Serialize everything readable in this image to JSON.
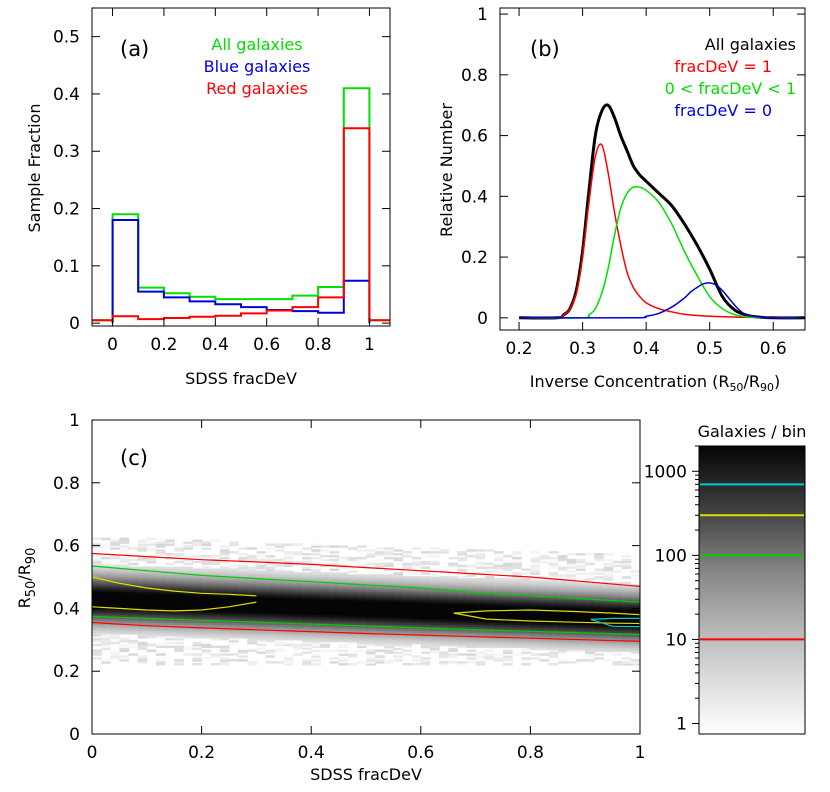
{
  "chart_data": [
    {
      "type": "line",
      "panel_label": "(a)",
      "xlabel": "SDSS fracDeV",
      "ylabel": "Sample Fraction",
      "xlim": [
        -0.08,
        1.08
      ],
      "ylim": [
        -0.005,
        0.55
      ],
      "xticks": [
        "0",
        "0.2",
        "0.4",
        "0.6",
        "0.8",
        "1"
      ],
      "xtick_values": [
        0,
        0.2,
        0.4,
        0.6,
        0.8,
        1
      ],
      "yticks": [
        "0",
        "0.1",
        "0.2",
        "0.3",
        "0.4",
        "0.5"
      ],
      "ytick_values": [
        0,
        0.1,
        0.2,
        0.3,
        0.4,
        0.5
      ],
      "legend_position": "top",
      "series": [
        {
          "name": "All galaxies",
          "color": "#00e000",
          "step": true,
          "x": [
            -0.08,
            0.0,
            0.0,
            0.1,
            0.1,
            0.2,
            0.2,
            0.3,
            0.3,
            0.4,
            0.4,
            0.5,
            0.5,
            0.6,
            0.6,
            0.7,
            0.7,
            0.8,
            0.8,
            0.9,
            0.9,
            1.0,
            1.0,
            1.08
          ],
          "y": [
            0.005,
            0.005,
            0.19,
            0.19,
            0.062,
            0.062,
            0.052,
            0.052,
            0.046,
            0.046,
            0.042,
            0.042,
            0.042,
            0.042,
            0.042,
            0.042,
            0.048,
            0.048,
            0.063,
            0.063,
            0.41,
            0.41,
            0.005,
            0.005
          ]
        },
        {
          "name": "Blue galaxies",
          "color": "#0000dd",
          "step": true,
          "x": [
            0.0,
            0.0,
            0.1,
            0.1,
            0.2,
            0.2,
            0.3,
            0.3,
            0.4,
            0.4,
            0.5,
            0.5,
            0.6,
            0.6,
            0.7,
            0.7,
            0.8,
            0.8,
            0.9,
            0.9,
            1.0,
            1.0
          ],
          "y": [
            0.0,
            0.18,
            0.18,
            0.055,
            0.055,
            0.045,
            0.045,
            0.038,
            0.038,
            0.033,
            0.033,
            0.028,
            0.028,
            0.023,
            0.023,
            0.021,
            0.021,
            0.018,
            0.018,
            0.074,
            0.074,
            0.0
          ]
        },
        {
          "name": "Red galaxies",
          "color": "#ff0000",
          "step": true,
          "x": [
            -0.08,
            0.0,
            0.0,
            0.1,
            0.1,
            0.2,
            0.2,
            0.3,
            0.3,
            0.4,
            0.4,
            0.5,
            0.5,
            0.6,
            0.6,
            0.7,
            0.7,
            0.8,
            0.8,
            0.9,
            0.9,
            1.0,
            1.0,
            1.08
          ],
          "y": [
            0.005,
            0.005,
            0.012,
            0.012,
            0.007,
            0.007,
            0.009,
            0.009,
            0.011,
            0.011,
            0.013,
            0.013,
            0.017,
            0.017,
            0.022,
            0.022,
            0.028,
            0.028,
            0.045,
            0.045,
            0.34,
            0.34,
            0.005,
            0.005
          ]
        }
      ]
    },
    {
      "type": "line",
      "panel_label": "(b)",
      "xlabel": "Inverse Concentration (R",
      "xlabel_sub1": "50",
      "xlabel_mid": "/R",
      "xlabel_sub2": "90",
      "xlabel_end": ")",
      "ylabel": "Relative Number",
      "xlim": [
        0.17,
        0.65
      ],
      "ylim": [
        -0.04,
        1.02
      ],
      "xticks": [
        "0.2",
        "0.3",
        "0.4",
        "0.5",
        "0.6"
      ],
      "xtick_values": [
        0.2,
        0.3,
        0.4,
        0.5,
        0.6
      ],
      "yticks": [
        "0",
        "0.2",
        "0.4",
        "0.6",
        "0.8",
        "1"
      ],
      "ytick_values": [
        0,
        0.2,
        0.4,
        0.6,
        0.8,
        1
      ],
      "legend_position": "top-right",
      "series": [
        {
          "name": "All galaxies",
          "color": "#000000",
          "width": 3,
          "x": [
            0.2,
            0.26,
            0.27,
            0.28,
            0.29,
            0.3,
            0.31,
            0.32,
            0.33,
            0.34,
            0.35,
            0.36,
            0.37,
            0.38,
            0.39,
            0.4,
            0.42,
            0.44,
            0.46,
            0.48,
            0.5,
            0.52,
            0.54,
            0.56,
            0.58,
            0.6,
            0.65
          ],
          "y": [
            0.0,
            0.0,
            0.01,
            0.03,
            0.09,
            0.22,
            0.42,
            0.6,
            0.68,
            0.7,
            0.66,
            0.6,
            0.55,
            0.5,
            0.47,
            0.45,
            0.41,
            0.37,
            0.31,
            0.24,
            0.16,
            0.07,
            0.025,
            0.008,
            0.002,
            0.0,
            0.0
          ]
        },
        {
          "name": "fracDeV = 1",
          "color": "#ff0000",
          "width": 1.5,
          "x": [
            0.2,
            0.26,
            0.27,
            0.28,
            0.29,
            0.3,
            0.31,
            0.32,
            0.33,
            0.34,
            0.35,
            0.36,
            0.37,
            0.38,
            0.39,
            0.4,
            0.42,
            0.44,
            0.46,
            0.5,
            0.55,
            0.65
          ],
          "y": [
            0.0,
            0.0,
            0.01,
            0.03,
            0.08,
            0.2,
            0.38,
            0.53,
            0.57,
            0.48,
            0.35,
            0.24,
            0.15,
            0.1,
            0.07,
            0.05,
            0.03,
            0.02,
            0.012,
            0.005,
            0.002,
            0.0
          ]
        },
        {
          "name": "0 < fracDeV < 1",
          "color": "#00e000",
          "width": 1.5,
          "x": [
            0.2,
            0.3,
            0.31,
            0.32,
            0.33,
            0.34,
            0.35,
            0.36,
            0.37,
            0.38,
            0.39,
            0.4,
            0.42,
            0.44,
            0.46,
            0.48,
            0.5,
            0.52,
            0.54,
            0.56,
            0.6,
            0.65
          ],
          "y": [
            0.0,
            0.0,
            0.01,
            0.03,
            0.08,
            0.16,
            0.27,
            0.36,
            0.41,
            0.43,
            0.43,
            0.42,
            0.38,
            0.31,
            0.22,
            0.14,
            0.07,
            0.03,
            0.01,
            0.003,
            0.0,
            0.0
          ]
        },
        {
          "name": "fracDeV = 0",
          "color": "#0000dd",
          "width": 1.5,
          "x": [
            0.2,
            0.38,
            0.4,
            0.42,
            0.44,
            0.46,
            0.47,
            0.48,
            0.49,
            0.5,
            0.51,
            0.52,
            0.53,
            0.54,
            0.55,
            0.56,
            0.58,
            0.6,
            0.65
          ],
          "y": [
            0.0,
            0.0,
            0.005,
            0.015,
            0.035,
            0.065,
            0.085,
            0.1,
            0.112,
            0.115,
            0.108,
            0.09,
            0.065,
            0.04,
            0.02,
            0.008,
            0.002,
            0.0,
            0.0
          ]
        }
      ]
    },
    {
      "type": "heatmap",
      "panel_label": "(c)",
      "xlabel": "SDSS fracDeV",
      "ylabel": "R",
      "ylabel_sub1": "50",
      "ylabel_mid": "/R",
      "ylabel_sub2": "90",
      "xlim": [
        0,
        1
      ],
      "ylim": [
        0,
        1
      ],
      "xticks": [
        "0",
        "0.2",
        "0.4",
        "0.6",
        "0.8",
        "1"
      ],
      "xtick_values": [
        0,
        0.2,
        0.4,
        0.6,
        0.8,
        1
      ],
      "yticks": [
        "0",
        "0.2",
        "0.4",
        "0.6",
        "0.8",
        "1"
      ],
      "ytick_values": [
        0,
        0.2,
        0.4,
        0.6,
        0.8,
        1
      ],
      "ridge_center": [
        0.43,
        0.37
      ],
      "contours": [
        {
          "level": 10,
          "color": "#ff0000",
          "upper": {
            "x": [
              0,
              0.1,
              0.2,
              0.3,
              0.4,
              0.5,
              0.6,
              0.7,
              0.8,
              0.9,
              1.0
            ],
            "y": [
              0.575,
              0.565,
              0.555,
              0.548,
              0.54,
              0.53,
              0.52,
              0.51,
              0.5,
              0.485,
              0.47
            ]
          },
          "lower": {
            "x": [
              0,
              0.1,
              0.2,
              0.3,
              0.4,
              0.5,
              0.6,
              0.7,
              0.8,
              0.9,
              1.0
            ],
            "y": [
              0.355,
              0.345,
              0.338,
              0.332,
              0.326,
              0.32,
              0.315,
              0.31,
              0.305,
              0.3,
              0.295
            ]
          }
        },
        {
          "level": 100,
          "color": "#00cc00",
          "upper": {
            "x": [
              0,
              0.1,
              0.2,
              0.3,
              0.4,
              0.5,
              0.6,
              0.7,
              0.8,
              0.9,
              1.0
            ],
            "y": [
              0.535,
              0.52,
              0.505,
              0.495,
              0.485,
              0.475,
              0.465,
              0.45,
              0.44,
              0.43,
              0.42
            ]
          },
          "lower": {
            "x": [
              0,
              0.1,
              0.2,
              0.3,
              0.4,
              0.5,
              0.6,
              0.7,
              0.8,
              0.9,
              1.0
            ],
            "y": [
              0.375,
              0.368,
              0.362,
              0.356,
              0.35,
              0.344,
              0.338,
              0.332,
              0.327,
              0.322,
              0.317
            ]
          }
        },
        {
          "level": 300,
          "color": "#dddd00",
          "upper": {
            "x": [
              0,
              0.05,
              0.1,
              0.15,
              0.2,
              0.25,
              0.3
            ],
            "y": [
              0.5,
              0.48,
              0.465,
              0.455,
              0.448,
              0.445,
              0.44
            ]
          },
          "lower": {
            "x": [
              0,
              0.05,
              0.1,
              0.15,
              0.2,
              0.25,
              0.3
            ],
            "y": [
              0.405,
              0.4,
              0.395,
              0.392,
              0.395,
              0.405,
              0.42
            ]
          },
          "extra": {
            "x": [
              0.66,
              0.72,
              0.8,
              0.88,
              0.95,
              1.0,
              1.0,
              0.95,
              0.88,
              0.8,
              0.72,
              0.66
            ],
            "y": [
              0.385,
              0.392,
              0.395,
              0.39,
              0.385,
              0.38,
              0.352,
              0.353,
              0.356,
              0.36,
              0.366,
              0.385
            ]
          }
        },
        {
          "level": 700,
          "color": "#00cccc",
          "extra": {
            "x": [
              0.91,
              0.95,
              1.0,
              1.0,
              0.95,
              0.91
            ],
            "y": [
              0.365,
              0.368,
              0.368,
              0.342,
              0.343,
              0.365
            ]
          }
        }
      ]
    },
    {
      "type": "colorbar",
      "title": "Galaxies / bin",
      "scale": "log",
      "ylim": [
        0.75,
        2000
      ],
      "ticks": [
        "1",
        "10",
        "100",
        "1000"
      ],
      "tick_values": [
        1,
        10,
        100,
        1000
      ],
      "levels": [
        {
          "value": 10,
          "color": "#ff0000"
        },
        {
          "value": 100,
          "color": "#00cc00"
        },
        {
          "value": 300,
          "color": "#dddd00"
        },
        {
          "value": 700,
          "color": "#00cccc"
        }
      ]
    }
  ]
}
